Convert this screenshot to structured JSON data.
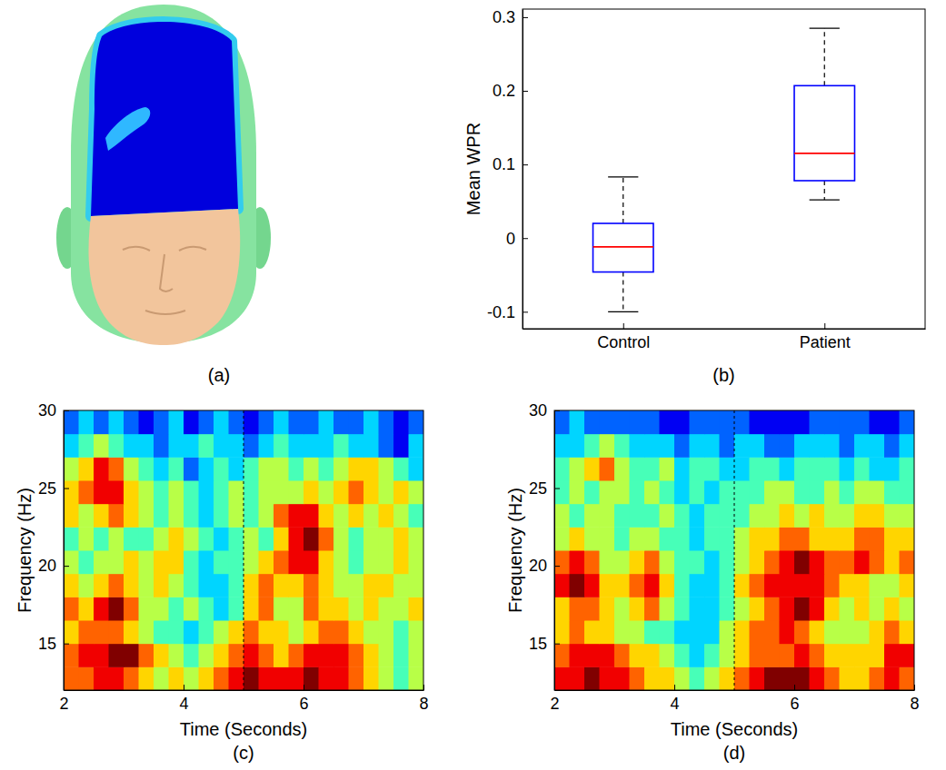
{
  "chart_data": [
    {
      "type": "image",
      "caption": "(a)"
    },
    {
      "type": "box",
      "caption": "(b)",
      "y_label": "Mean WPR",
      "categories": [
        "Control",
        "Patient"
      ],
      "whisker_low": [
        -0.1,
        0.052
      ],
      "q1": [
        -0.046,
        0.078
      ],
      "median": [
        -0.012,
        0.115
      ],
      "q3": [
        0.02,
        0.207
      ],
      "whisker_high": [
        0.083,
        0.285
      ],
      "color": "#0000ff",
      "ylim": [
        -0.123,
        0.311
      ],
      "yticks": [
        -0.1,
        0,
        0.1,
        0.2,
        0.3
      ]
    },
    {
      "type": "heatmap",
      "caption": "(c)",
      "x_label": "Time (Seconds)",
      "y_label": "Frequency (Hz)",
      "xlim": [
        2,
        8
      ],
      "xticks": [
        2,
        4,
        6,
        8
      ],
      "ylim": [
        12,
        30
      ],
      "yticks": [
        15,
        20,
        25,
        30
      ],
      "vline": 5,
      "color_range": [
        0,
        9
      ],
      "x_edges": [
        2,
        2.25,
        2.5,
        2.75,
        3,
        3.25,
        3.5,
        3.75,
        4,
        4.25,
        4.5,
        4.75,
        5,
        5.25,
        5.5,
        5.75,
        6,
        6.25,
        6.5,
        6.75,
        7,
        7.25,
        7.5,
        7.75,
        8
      ],
      "y_edges": [
        12,
        13.5,
        15,
        16.5,
        18,
        19.5,
        21,
        22.5,
        24,
        25.5,
        27,
        28.5,
        30
      ],
      "cells": [
        [
          7,
          7,
          8,
          8,
          7,
          6,
          5,
          6,
          5,
          6,
          7,
          8,
          9,
          8,
          8,
          8,
          9,
          8,
          8,
          7,
          6,
          5,
          4,
          5
        ],
        [
          7,
          8,
          8,
          9,
          9,
          7,
          6,
          5,
          4,
          5,
          6,
          7,
          8,
          7,
          6,
          7,
          8,
          8,
          8,
          7,
          6,
          5,
          4,
          5
        ],
        [
          6,
          7,
          7,
          7,
          6,
          5,
          4,
          4,
          3,
          4,
          5,
          6,
          7,
          6,
          6,
          5,
          6,
          7,
          7,
          6,
          5,
          5,
          4,
          5
        ],
        [
          7,
          6,
          8,
          9,
          7,
          5,
          5,
          4,
          5,
          4,
          3,
          4,
          6,
          7,
          5,
          5,
          7,
          6,
          6,
          5,
          6,
          5,
          5,
          6
        ],
        [
          6,
          5,
          6,
          7,
          6,
          5,
          6,
          5,
          4,
          3,
          3,
          4,
          6,
          7,
          6,
          6,
          7,
          6,
          5,
          5,
          6,
          6,
          5,
          5
        ],
        [
          5,
          4,
          5,
          5,
          6,
          5,
          6,
          6,
          4,
          3,
          4,
          4,
          5,
          6,
          7,
          8,
          8,
          6,
          5,
          4,
          5,
          5,
          6,
          5
        ],
        [
          4,
          5,
          4,
          5,
          4,
          4,
          5,
          6,
          5,
          4,
          3,
          4,
          5,
          4,
          6,
          8,
          9,
          7,
          5,
          4,
          5,
          5,
          6,
          5
        ],
        [
          6,
          5,
          6,
          7,
          6,
          5,
          4,
          5,
          4,
          3,
          4,
          5,
          4,
          5,
          7,
          8,
          8,
          6,
          5,
          6,
          5,
          6,
          5,
          4
        ],
        [
          6,
          7,
          8,
          8,
          6,
          5,
          4,
          5,
          4,
          3,
          4,
          5,
          4,
          5,
          5,
          5,
          6,
          5,
          6,
          7,
          6,
          5,
          6,
          5
        ],
        [
          5,
          6,
          8,
          7,
          5,
          4,
          3,
          4,
          2,
          3,
          4,
          3,
          4,
          5,
          5,
          4,
          5,
          4,
          5,
          6,
          6,
          5,
          4,
          3
        ],
        [
          3,
          4,
          5,
          4,
          3,
          3,
          2,
          3,
          3,
          4,
          3,
          3,
          2,
          3,
          4,
          3,
          3,
          3,
          4,
          3,
          3,
          2,
          1,
          3
        ],
        [
          2,
          3,
          2,
          3,
          2,
          1,
          2,
          3,
          1,
          2,
          3,
          2,
          1,
          2,
          3,
          2,
          2,
          3,
          2,
          2,
          3,
          2,
          1,
          2
        ]
      ]
    },
    {
      "type": "heatmap",
      "caption": "(d)",
      "x_label": "Time (Seconds)",
      "y_label": "Frequency (Hz)",
      "xlim": [
        2,
        8
      ],
      "xticks": [
        2,
        4,
        6,
        8
      ],
      "ylim": [
        12,
        30
      ],
      "yticks": [
        15,
        20,
        25,
        30
      ],
      "vline": 5,
      "color_range": [
        0,
        9
      ],
      "x_edges": [
        2,
        2.25,
        2.5,
        2.75,
        3,
        3.25,
        3.5,
        3.75,
        4,
        4.25,
        4.5,
        4.75,
        5,
        5.25,
        5.5,
        5.75,
        6,
        6.25,
        6.5,
        6.75,
        7,
        7.25,
        7.5,
        7.75,
        8
      ],
      "y_edges": [
        12,
        13.5,
        15,
        16.5,
        18,
        19.5,
        21,
        22.5,
        24,
        25.5,
        27,
        28.5,
        30
      ],
      "cells": [
        [
          8,
          8,
          9,
          8,
          8,
          7,
          6,
          6,
          5,
          4,
          5,
          6,
          7,
          8,
          9,
          9,
          9,
          8,
          7,
          6,
          6,
          7,
          8,
          7
        ],
        [
          7,
          8,
          8,
          8,
          7,
          6,
          6,
          5,
          4,
          3,
          4,
          5,
          6,
          7,
          7,
          7,
          8,
          7,
          6,
          6,
          6,
          6,
          8,
          8
        ],
        [
          6,
          7,
          6,
          6,
          5,
          5,
          4,
          4,
          3,
          3,
          3,
          5,
          6,
          7,
          7,
          8,
          7,
          6,
          5,
          5,
          5,
          6,
          7,
          6
        ],
        [
          6,
          7,
          7,
          6,
          5,
          6,
          7,
          5,
          4,
          3,
          3,
          4,
          5,
          6,
          7,
          8,
          9,
          8,
          6,
          5,
          6,
          5,
          6,
          5
        ],
        [
          8,
          9,
          8,
          6,
          6,
          7,
          8,
          6,
          4,
          3,
          3,
          4,
          6,
          7,
          8,
          8,
          8,
          8,
          7,
          6,
          6,
          5,
          5,
          6
        ],
        [
          7,
          8,
          7,
          5,
          5,
          6,
          7,
          5,
          4,
          4,
          3,
          4,
          5,
          6,
          7,
          8,
          9,
          8,
          7,
          7,
          8,
          7,
          6,
          7
        ],
        [
          5,
          6,
          5,
          5,
          4,
          5,
          5,
          4,
          4,
          3,
          4,
          4,
          5,
          6,
          6,
          7,
          7,
          6,
          6,
          6,
          7,
          7,
          6,
          6
        ],
        [
          5,
          4,
          5,
          5,
          4,
          4,
          4,
          5,
          4,
          3,
          4,
          4,
          4,
          5,
          5,
          6,
          5,
          6,
          5,
          5,
          6,
          6,
          5,
          5
        ],
        [
          4,
          5,
          4,
          5,
          5,
          4,
          5,
          4,
          3,
          4,
          3,
          4,
          4,
          4,
          5,
          5,
          4,
          4,
          5,
          4,
          5,
          5,
          4,
          4
        ],
        [
          4,
          5,
          6,
          7,
          5,
          4,
          4,
          5,
          3,
          4,
          4,
          3,
          3,
          4,
          4,
          3,
          4,
          4,
          4,
          3,
          4,
          3,
          3,
          4
        ],
        [
          3,
          3,
          4,
          5,
          4,
          3,
          3,
          3,
          2,
          3,
          3,
          2,
          3,
          3,
          2,
          2,
          3,
          3,
          3,
          2,
          3,
          3,
          2,
          3
        ],
        [
          2,
          3,
          2,
          2,
          2,
          2,
          2,
          1,
          1,
          2,
          2,
          2,
          2,
          1,
          1,
          1,
          1,
          2,
          2,
          2,
          2,
          1,
          1,
          2
        ]
      ]
    }
  ]
}
